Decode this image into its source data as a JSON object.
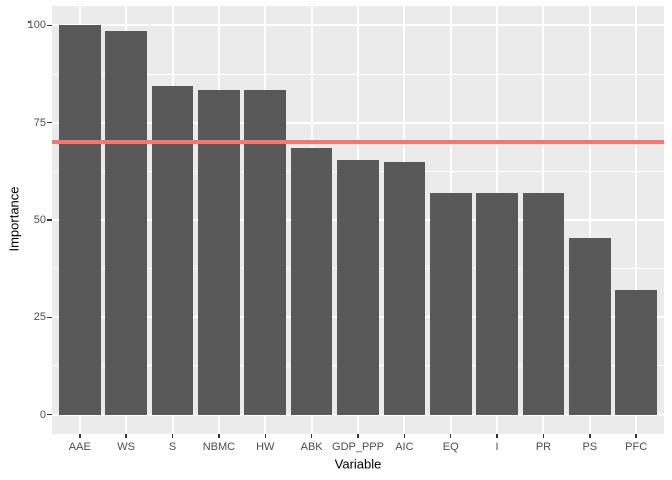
{
  "chart_data": {
    "type": "bar",
    "title": "",
    "xlabel": "Variable",
    "ylabel": "Importance",
    "categories": [
      "AAE",
      "WS",
      "S",
      "NBMC",
      "HW",
      "ABK",
      "GDP_PPP",
      "AIC",
      "EQ",
      "I",
      "PR",
      "PS",
      "PFC"
    ],
    "values": [
      100,
      98.5,
      84.5,
      83.5,
      83.5,
      68.5,
      65.5,
      65,
      57,
      57,
      57,
      45.5,
      32
    ],
    "y_ticks": [
      0,
      25,
      50,
      75,
      100
    ],
    "y_minor_gridlines": [
      12.5,
      37.5,
      62.5,
      87.5
    ],
    "ylim": [
      -5,
      105
    ],
    "grid": true,
    "legend_position": "none",
    "reference_line": {
      "y": 70,
      "color": "#F8766D"
    },
    "bar_color": "#595959",
    "panel_background": "#EBEBEB",
    "gridline_color": "#FFFFFF",
    "tick_label_color": "#4D4D4D",
    "axis_title_color": "#000000"
  }
}
